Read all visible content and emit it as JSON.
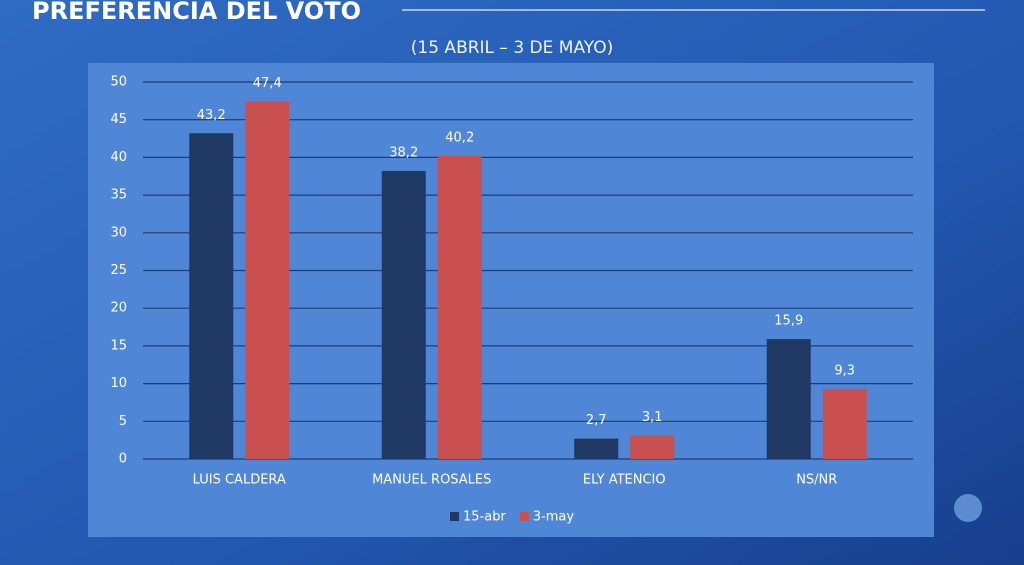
{
  "chart_data": {
    "type": "bar",
    "title": "PREFERENCIA DEL VOTO",
    "subtitle": "(15 ABRIL – 3 DE MAYO)",
    "categories": [
      "LUIS CALDERA",
      "MANUEL ROSALES",
      "ELY ATENCIO",
      "NS/NR"
    ],
    "series": [
      {
        "name": "15-abr",
        "color": "#1f3864",
        "values": [
          43.2,
          38.2,
          2.7,
          15.9
        ],
        "value_labels": [
          "43,2",
          "38,2",
          "2,7",
          "15,9"
        ]
      },
      {
        "name": "3-may",
        "color": "#c9504f",
        "values": [
          47.4,
          40.2,
          3.1,
          9.3
        ],
        "value_labels": [
          "47,4",
          "40,2",
          "3,1",
          "9,3"
        ]
      }
    ],
    "ylim": [
      0,
      50
    ],
    "yticks": [
      0,
      5,
      10,
      15,
      20,
      25,
      30,
      35,
      40,
      45,
      50
    ],
    "grid": true,
    "legend": "bottom"
  }
}
